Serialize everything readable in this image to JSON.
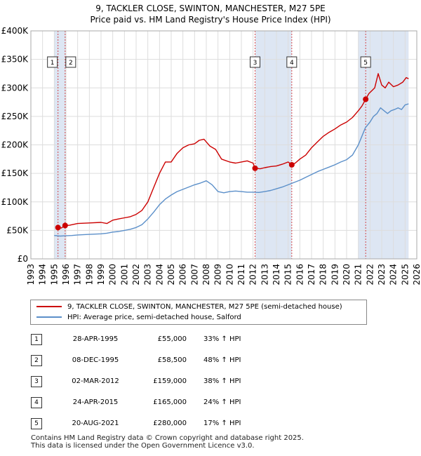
{
  "title_line1": "9, TACKLER CLOSE, SWINTON, MANCHESTER, M27 5PE",
  "title_line2": "Price paid vs. HM Land Registry's House Price Index (HPI)",
  "colors": {
    "property": "#cc0000",
    "hpi": "#5b8fc9",
    "highlight": "#dde6f3",
    "marker": "#cc0000"
  },
  "chart_data": {
    "type": "line",
    "ylim": [
      0,
      400000
    ],
    "xlim": [
      1993,
      2026
    ],
    "y_ticks": [
      {
        "value": 0,
        "label": "£0"
      },
      {
        "value": 50000,
        "label": "£50K"
      },
      {
        "value": 100000,
        "label": "£100K"
      },
      {
        "value": 150000,
        "label": "£150K"
      },
      {
        "value": 200000,
        "label": "£200K"
      },
      {
        "value": 250000,
        "label": "£250K"
      },
      {
        "value": 300000,
        "label": "£300K"
      },
      {
        "value": 350000,
        "label": "£350K"
      },
      {
        "value": 400000,
        "label": "£400K"
      }
    ],
    "x_ticks": [
      "1993",
      "1994",
      "1995",
      "1996",
      "1997",
      "1998",
      "1999",
      "2000",
      "2001",
      "2002",
      "2003",
      "2004",
      "2005",
      "2006",
      "2007",
      "2008",
      "2009",
      "2010",
      "2011",
      "2012",
      "2013",
      "2014",
      "2015",
      "2016",
      "2017",
      "2018",
      "2019",
      "2020",
      "2021",
      "2022",
      "2023",
      "2024",
      "2025",
      "2026"
    ],
    "grid": true,
    "shaded_ranges": [
      [
        1995.0,
        1996.0
      ],
      [
        2012.2,
        2015.3
      ],
      [
        2021.0,
        2025.3
      ]
    ],
    "series": [
      {
        "name": "9, TACKLER CLOSE, SWINTON, MANCHESTER, M27 5PE (semi-detached house)",
        "x": [
          1995.32,
          1995.6,
          1995.93,
          1996.3,
          1997,
          1998,
          1999,
          1999.5,
          2000,
          2000.5,
          2001,
          2001.5,
          2002,
          2002.5,
          2003,
          2003.5,
          2004,
          2004.5,
          2005,
          2005.5,
          2006,
          2006.5,
          2007,
          2007.4,
          2007.8,
          2008.3,
          2008.8,
          2009.3,
          2010,
          2010.5,
          2011,
          2011.5,
          2012.0,
          2012.17,
          2012.6,
          2013,
          2013.5,
          2014,
          2014.5,
          2015.0,
          2015.31,
          2015.6,
          2016,
          2016.5,
          2017,
          2017.5,
          2018,
          2018.5,
          2019,
          2019.5,
          2020,
          2020.5,
          2021.0,
          2021.3,
          2021.63,
          2021.9,
          2022.2,
          2022.4,
          2022.7,
          2023.0,
          2023.3,
          2023.6,
          2024,
          2024.4,
          2024.8,
          2025.1,
          2025.3
        ],
        "y": [
          55000,
          54000,
          58500,
          59000,
          62000,
          63000,
          64000,
          62000,
          68000,
          70000,
          72000,
          74000,
          78000,
          85000,
          100000,
          125000,
          150000,
          170000,
          170000,
          185000,
          195000,
          200000,
          202000,
          208000,
          210000,
          198000,
          192000,
          175000,
          170000,
          168000,
          170000,
          172000,
          168000,
          159000,
          158000,
          160000,
          162000,
          163000,
          166000,
          170000,
          165000,
          168000,
          175000,
          182000,
          195000,
          205000,
          215000,
          222000,
          228000,
          235000,
          240000,
          248000,
          260000,
          268000,
          280000,
          290000,
          296000,
          300000,
          325000,
          305000,
          300000,
          310000,
          302000,
          305000,
          310000,
          318000,
          316000
        ]
      },
      {
        "name": "HPI: Average price, semi-detached house, Salford",
        "x": [
          1995.0,
          1995.5,
          1996,
          1996.5,
          1997,
          1998,
          1999,
          1999.5,
          2000,
          2000.5,
          2001,
          2001.5,
          2002,
          2002.5,
          2003,
          2003.5,
          2004,
          2004.5,
          2005,
          2005.5,
          2006,
          2006.5,
          2007,
          2007.5,
          2008,
          2008.5,
          2009,
          2009.5,
          2010,
          2010.5,
          2011,
          2011.5,
          2012,
          2012.5,
          2013,
          2013.5,
          2014,
          2014.5,
          2015,
          2015.5,
          2016,
          2016.5,
          2017,
          2017.5,
          2018,
          2018.5,
          2019,
          2019.5,
          2020,
          2020.5,
          2021,
          2021.3,
          2021.6,
          2022,
          2022.3,
          2022.6,
          2022.9,
          2023.2,
          2023.5,
          2023.8,
          2024.1,
          2024.4,
          2024.7,
          2025.0,
          2025.3
        ],
        "y": [
          41000,
          40000,
          40500,
          41000,
          42000,
          43000,
          44000,
          45000,
          47000,
          48000,
          50000,
          52000,
          55000,
          60000,
          70000,
          82000,
          95000,
          105000,
          112000,
          118000,
          122000,
          126000,
          130000,
          133000,
          137000,
          130000,
          118000,
          116000,
          118000,
          119000,
          118000,
          117000,
          117000,
          116500,
          118000,
          120000,
          123000,
          126000,
          130000,
          134000,
          138000,
          143000,
          148000,
          153000,
          157000,
          161000,
          165000,
          170000,
          174000,
          182000,
          200000,
          215000,
          230000,
          240000,
          250000,
          255000,
          265000,
          260000,
          255000,
          260000,
          262000,
          265000,
          262000,
          270000,
          272000
        ]
      }
    ],
    "sales": [
      {
        "id": "1",
        "x": 1995.32,
        "y": 55000
      },
      {
        "id": "2",
        "x": 1995.93,
        "y": 58500
      },
      {
        "id": "3",
        "x": 2012.17,
        "y": 159000
      },
      {
        "id": "4",
        "x": 2015.31,
        "y": 165000
      },
      {
        "id": "5",
        "x": 2021.63,
        "y": 280000
      }
    ]
  },
  "legend": {
    "property_label": "9, TACKLER CLOSE, SWINTON, MANCHESTER, M27 5PE (semi-detached house)",
    "hpi_label": "HPI: Average price, semi-detached house, Salford"
  },
  "transactions": [
    {
      "num": "1",
      "date": "28-APR-1995",
      "price": "£55,000",
      "hpi": "33% ↑ HPI"
    },
    {
      "num": "2",
      "date": "08-DEC-1995",
      "price": "£58,500",
      "hpi": "48% ↑ HPI"
    },
    {
      "num": "3",
      "date": "02-MAR-2012",
      "price": "£159,000",
      "hpi": "38% ↑ HPI"
    },
    {
      "num": "4",
      "date": "24-APR-2015",
      "price": "£165,000",
      "hpi": "24% ↑ HPI"
    },
    {
      "num": "5",
      "date": "20-AUG-2021",
      "price": "£280,000",
      "hpi": "17% ↑ HPI"
    }
  ],
  "footer_line1": "Contains HM Land Registry data © Crown copyright and database right 2025.",
  "footer_line2": "This data is licensed under the Open Government Licence v3.0."
}
